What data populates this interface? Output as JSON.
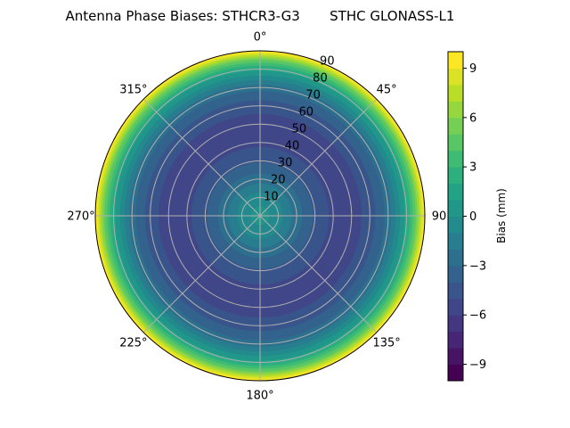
{
  "chart_data": {
    "type": "polar-contour",
    "title": "Antenna Phase Biases: STHCR3-G3       STHC GLONASS-L1",
    "angular_tick_labels": [
      "0°",
      "45°",
      "90",
      "135°",
      "180°",
      "225°",
      "270°",
      "315°"
    ],
    "angular_ticks_deg": [
      0,
      45,
      90,
      135,
      180,
      225,
      270,
      315
    ],
    "angular_zero": "north",
    "angular_direction": "clockwise",
    "radial_tick_labels": [
      "10",
      "20",
      "30",
      "40",
      "50",
      "60",
      "70",
      "80",
      "90"
    ],
    "radial_ticks": [
      10,
      20,
      30,
      40,
      50,
      60,
      70,
      80,
      90
    ],
    "rlim": [
      0,
      90
    ],
    "grid": true,
    "colormap": "viridis",
    "zenith_profile": {
      "zenith_deg": [
        0,
        10,
        20,
        30,
        40,
        50,
        60,
        70,
        80,
        85,
        90
      ],
      "bias_mm": [
        0.5,
        -0.5,
        -2.5,
        -4.2,
        -5.3,
        -5.5,
        -4.6,
        -2.6,
        1.5,
        5,
        10
      ]
    },
    "colorbar": {
      "label": "Bias (mm)",
      "range": [
        -10,
        10
      ],
      "level_step": 1,
      "tick_values": [
        9,
        6,
        3,
        0,
        -3,
        -6,
        -9
      ],
      "tick_labels": [
        "9",
        "6",
        "3",
        "0",
        "−3",
        "−6",
        "−9"
      ]
    }
  }
}
